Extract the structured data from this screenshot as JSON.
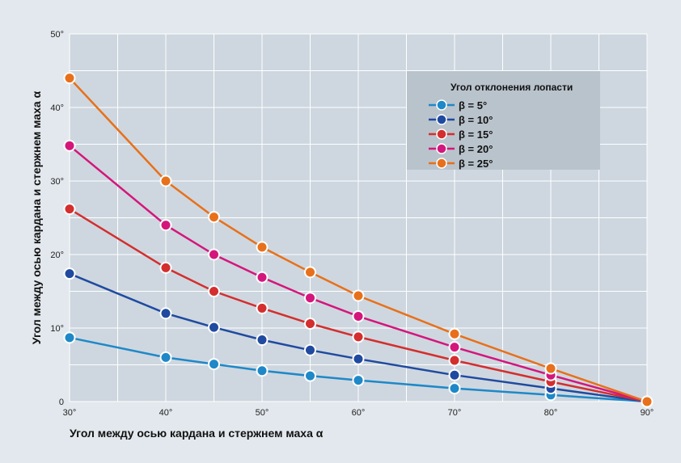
{
  "chart_data": {
    "type": "line",
    "xlabel": "Угол между осью кардана и стержнем маха α",
    "ylabel": "Угол между осью кардана и стержнем маха α",
    "x": [
      30,
      40,
      45,
      50,
      55,
      60,
      70,
      80,
      90
    ],
    "x_tick_labels": [
      "30°",
      "40°",
      "50°",
      "60°",
      "70°",
      "80°",
      "90°"
    ],
    "x_ticks": [
      30,
      40,
      50,
      60,
      70,
      80,
      90
    ],
    "y_tick_labels": [
      "0",
      "10°",
      "20°",
      "30°",
      "40°",
      "50°"
    ],
    "y_ticks": [
      0,
      10,
      20,
      30,
      40,
      50
    ],
    "xlim": [
      30,
      90
    ],
    "ylim": [
      0,
      50
    ],
    "grid": true,
    "legend": {
      "title": "Угол отклонения лопасти",
      "placement": "top-right"
    },
    "series": [
      {
        "name": "β = 5°",
        "color": "#1e88c8",
        "values": [
          8.7,
          6.0,
          5.1,
          4.2,
          3.5,
          2.9,
          1.8,
          0.9,
          0.0
        ]
      },
      {
        "name": "β = 10°",
        "color": "#1f4aa0",
        "values": [
          17.4,
          12.0,
          10.1,
          8.4,
          7.0,
          5.8,
          3.6,
          1.8,
          0.0
        ]
      },
      {
        "name": "β = 15°",
        "color": "#d42e2e",
        "values": [
          26.2,
          18.2,
          15.0,
          12.7,
          10.6,
          8.8,
          5.6,
          2.7,
          0.0
        ]
      },
      {
        "name": "β = 20°",
        "color": "#d4167c",
        "values": [
          34.8,
          24.0,
          20.0,
          16.9,
          14.1,
          11.6,
          7.4,
          3.6,
          0.0
        ]
      },
      {
        "name": "β = 25°",
        "color": "#e8701a",
        "values": [
          44.0,
          30.0,
          25.1,
          21.0,
          17.6,
          14.4,
          9.2,
          4.5,
          0.0
        ]
      }
    ]
  }
}
